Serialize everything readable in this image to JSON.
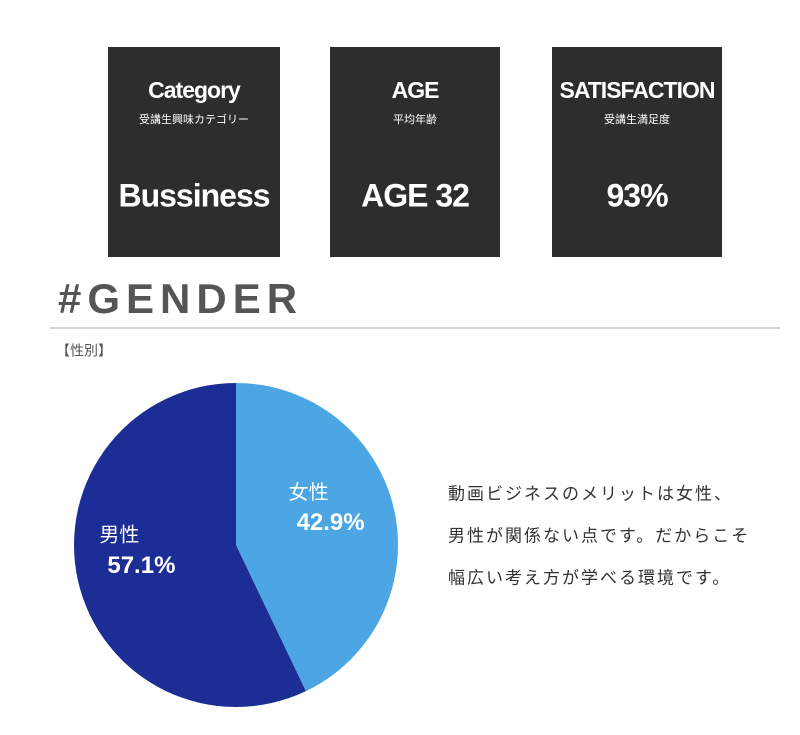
{
  "cards": [
    {
      "title": "Category",
      "subtitle": "受講生興味カテゴリー",
      "value": "Bussiness"
    },
    {
      "title": "AGE",
      "subtitle": "平均年齢",
      "value": "AGE 32"
    },
    {
      "title": "SATISFACTION",
      "subtitle": "受講生満足度",
      "value": "93%"
    }
  ],
  "section": {
    "title": "#GENDER",
    "subtitle": "【性別】"
  },
  "chart_data": {
    "type": "pie",
    "categories": [
      "女性",
      "男性"
    ],
    "values": [
      42.9,
      57.1
    ],
    "value_labels": [
      "42.9%",
      "57.1%"
    ],
    "colors": [
      "#4ba6e3",
      "#1c2e95"
    ]
  },
  "description": [
    "動画ビジネスのメリットは女性、",
    "男性が関係ない点です。だからこそ",
    "幅広い考え方が学べる環境です。"
  ]
}
